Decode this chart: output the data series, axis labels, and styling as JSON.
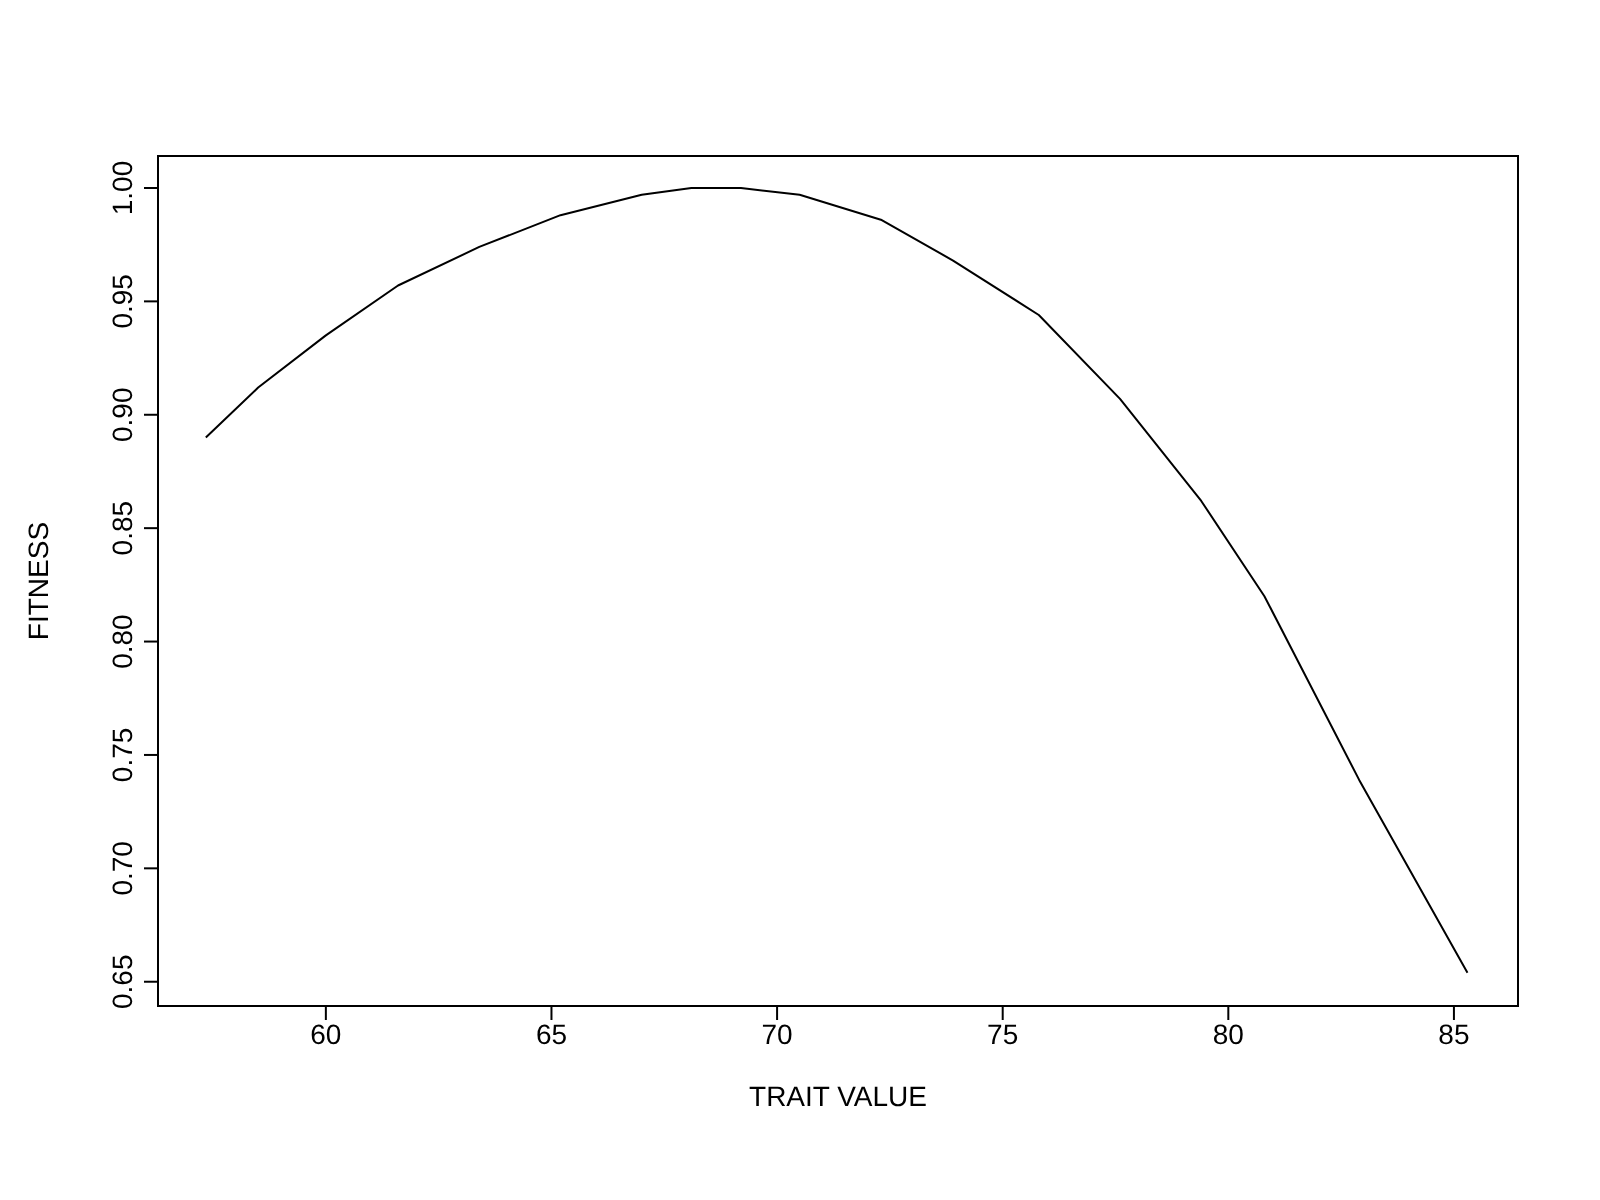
{
  "chart_data": {
    "type": "line",
    "xlabel": "TRAIT VALUE",
    "ylabel": "FITNESS",
    "x": [
      57.34,
      58.5,
      60,
      61.6,
      63.4,
      65.2,
      67,
      68.1,
      69.2,
      70.5,
      72.3,
      73.9,
      75.8,
      77.6,
      79.4,
      80.8,
      82.9,
      85.3
    ],
    "series": [
      {
        "color": "#000000",
        "values": [
          0.89,
          0.912,
          0.935,
          0.957,
          0.974,
          0.988,
          0.997,
          1.0,
          1.0,
          0.997,
          0.986,
          0.968,
          0.944,
          0.907,
          0.862,
          0.82,
          0.739,
          0.654
        ]
      }
    ],
    "xlim": [
      56.28,
      86.42
    ],
    "ylim": [
      0.6393,
      1.0141
    ],
    "xticks": [
      60,
      65,
      70,
      75,
      80,
      85
    ],
    "yticks": [
      {
        "value": 0.65,
        "label": "0.65"
      },
      {
        "value": 0.7,
        "label": "0.70"
      },
      {
        "value": 0.75,
        "label": "0.75"
      },
      {
        "value": 0.8,
        "label": "0.80"
      },
      {
        "value": 0.85,
        "label": "0.85"
      },
      {
        "value": 0.9,
        "label": "0.90"
      },
      {
        "value": 0.95,
        "label": "0.95"
      },
      {
        "value": 1.0,
        "label": "1.00"
      }
    ],
    "grid": false,
    "legend": false,
    "marker": "none",
    "line_style": "solid"
  }
}
